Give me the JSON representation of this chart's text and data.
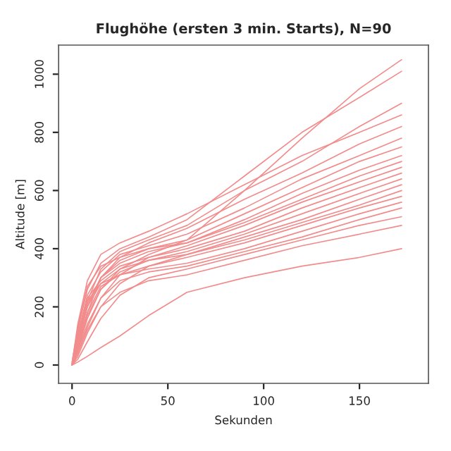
{
  "chart_data": {
    "type": "line",
    "title": "Flughöhe (ersten 3 min. Starts), N=90",
    "xlabel": "Sekunden",
    "ylabel": "Altitude [m]",
    "xlim": [
      -7,
      186
    ],
    "ylim": [
      -63,
      1100
    ],
    "xticks": [
      0,
      50,
      100,
      150
    ],
    "yticks": [
      0,
      200,
      400,
      600,
      800,
      1000
    ],
    "grid": false,
    "legend": false,
    "marker": "none",
    "line_style": "solid",
    "x": [
      0,
      3,
      8,
      15,
      25,
      40,
      60,
      90,
      120,
      150,
      172
    ],
    "series": [
      {
        "color": "#f28c8c",
        "values": [
          0,
          60,
          180,
          300,
          360,
          400,
          430,
          600,
          780,
          950,
          1050
        ]
      },
      {
        "color": "#f28c8c",
        "values": [
          10,
          120,
          260,
          350,
          400,
          440,
          500,
          650,
          800,
          920,
          1010
        ]
      },
      {
        "color": "#f28c8c",
        "values": [
          0,
          90,
          220,
          330,
          390,
          430,
          480,
          600,
          700,
          820,
          900
        ]
      },
      {
        "color": "#f28c8c",
        "values": [
          5,
          140,
          290,
          380,
          420,
          460,
          520,
          620,
          720,
          800,
          860
        ]
      },
      {
        "color": "#f28c8c",
        "values": [
          0,
          70,
          200,
          300,
          370,
          420,
          470,
          570,
          660,
          760,
          820
        ]
      },
      {
        "color": "#f28c8c",
        "values": [
          0,
          100,
          240,
          320,
          380,
          410,
          450,
          540,
          640,
          720,
          780
        ]
      },
      {
        "color": "#f28c8c",
        "values": [
          0,
          50,
          160,
          260,
          330,
          380,
          430,
          520,
          610,
          700,
          750
        ]
      },
      {
        "color": "#f28c8c",
        "values": [
          0,
          80,
          210,
          300,
          350,
          390,
          420,
          500,
          590,
          670,
          720
        ]
      },
      {
        "color": "#f28c8c",
        "values": [
          0,
          130,
          270,
          340,
          370,
          400,
          420,
          490,
          570,
          650,
          700
        ]
      },
      {
        "color": "#f28c8c",
        "values": [
          0,
          40,
          130,
          230,
          310,
          370,
          410,
          480,
          560,
          630,
          680
        ]
      },
      {
        "color": "#f28c8c",
        "values": [
          0,
          110,
          230,
          290,
          340,
          370,
          400,
          460,
          540,
          610,
          660
        ]
      },
      {
        "color": "#f28c8c",
        "values": [
          0,
          60,
          170,
          260,
          320,
          360,
          390,
          450,
          520,
          590,
          640
        ]
      },
      {
        "color": "#f28c8c",
        "values": [
          0,
          90,
          200,
          280,
          330,
          360,
          380,
          440,
          500,
          570,
          620
        ]
      },
      {
        "color": "#f28c8c",
        "values": [
          0,
          30,
          110,
          200,
          280,
          340,
          380,
          430,
          490,
          550,
          600
        ]
      },
      {
        "color": "#f28c8c",
        "values": [
          0,
          70,
          180,
          270,
          310,
          340,
          370,
          420,
          480,
          540,
          580
        ]
      },
      {
        "color": "#f28c8c",
        "values": [
          0,
          100,
          220,
          280,
          310,
          330,
          350,
          400,
          460,
          520,
          560
        ]
      },
      {
        "color": "#f28c8c",
        "values": [
          0,
          50,
          140,
          230,
          290,
          320,
          340,
          390,
          440,
          500,
          540
        ]
      },
      {
        "color": "#f28c8c",
        "values": [
          0,
          20,
          80,
          160,
          240,
          300,
          330,
          380,
          430,
          480,
          510
        ]
      },
      {
        "color": "#f28c8c",
        "values": [
          0,
          40,
          120,
          200,
          250,
          290,
          310,
          360,
          410,
          450,
          480
        ]
      },
      {
        "color": "#f28c8c",
        "values": [
          0,
          10,
          30,
          60,
          100,
          170,
          250,
          300,
          340,
          370,
          400
        ]
      }
    ]
  }
}
